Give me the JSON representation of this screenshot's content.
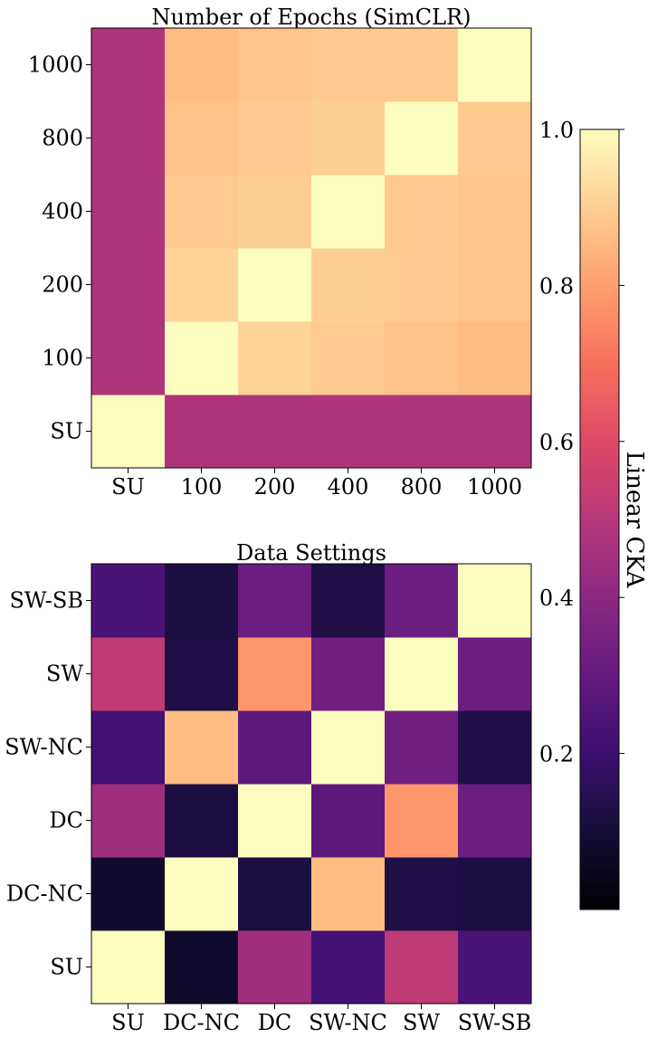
{
  "chart_data": [
    {
      "type": "heatmap",
      "title": "Number of Epochs (SimCLR)",
      "x_categories": [
        "SU",
        "100",
        "200",
        "400",
        "800",
        "1000"
      ],
      "y_categories": [
        "SU",
        "100",
        "200",
        "400",
        "800",
        "1000"
      ],
      "values": [
        [
          1.0,
          0.48,
          0.48,
          0.48,
          0.48,
          0.48
        ],
        [
          0.48,
          1.0,
          0.91,
          0.89,
          0.87,
          0.86
        ],
        [
          0.48,
          0.91,
          1.0,
          0.9,
          0.89,
          0.88
        ],
        [
          0.48,
          0.89,
          0.9,
          1.0,
          0.89,
          0.88
        ],
        [
          0.48,
          0.87,
          0.89,
          0.9,
          1.0,
          0.89
        ],
        [
          0.48,
          0.86,
          0.88,
          0.89,
          0.89,
          1.0
        ]
      ]
    },
    {
      "type": "heatmap",
      "title": "Data Settings",
      "x_categories": [
        "SU",
        "DC-NC",
        "DC",
        "SW-NC",
        "SW",
        "SW-SB"
      ],
      "y_categories": [
        "SU",
        "DC-NC",
        "DC",
        "SW-NC",
        "SW",
        "SW-SB"
      ],
      "values": [
        [
          1.0,
          0.08,
          0.44,
          0.22,
          0.52,
          0.24
        ],
        [
          0.08,
          1.0,
          0.12,
          0.86,
          0.13,
          0.12
        ],
        [
          0.44,
          0.12,
          1.0,
          0.28,
          0.78,
          0.32
        ],
        [
          0.22,
          0.86,
          0.28,
          1.0,
          0.33,
          0.13
        ],
        [
          0.52,
          0.13,
          0.78,
          0.33,
          1.0,
          0.32
        ],
        [
          0.24,
          0.12,
          0.32,
          0.13,
          0.32,
          1.0
        ]
      ]
    }
  ],
  "colorbar": {
    "label": "Linear CKA",
    "vmin": 0.0,
    "vmax": 1.0,
    "ticks": [
      "0.2",
      "0.4",
      "0.6",
      "0.8",
      "1.0"
    ],
    "colormap": "magma"
  }
}
